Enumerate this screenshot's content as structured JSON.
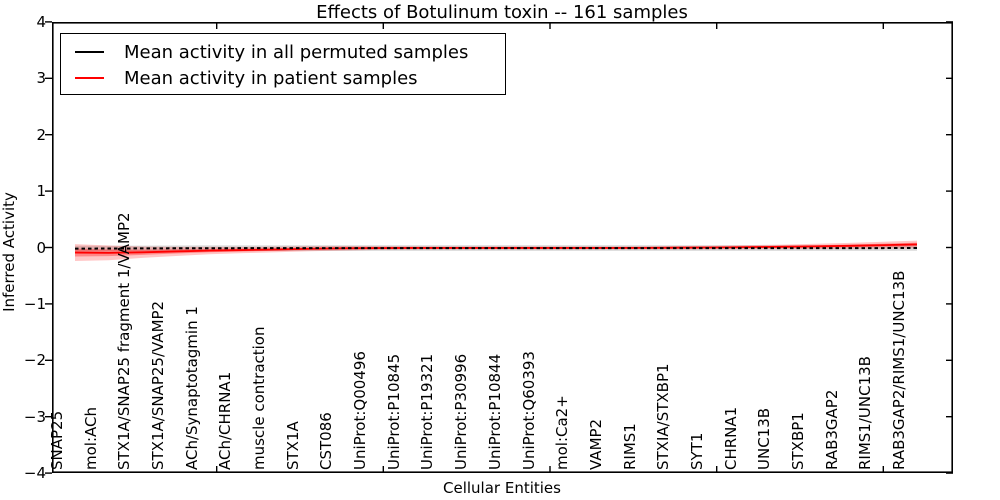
{
  "colors": {
    "background": "#ffffff",
    "frame": "#000000",
    "permuted_line": "#000000",
    "patient_line": "#ff0000",
    "patient_band": "rgba(255,0,0,0.22)",
    "patient_band_inner": "rgba(255,0,0,0.32)",
    "permuted_band": "rgba(0,0,0,0.15)"
  },
  "chart_data": {
    "type": "line",
    "title": "Effects of Botulinum toxin -- 161 samples",
    "xlabel": "Cellular Entities",
    "ylabel": "Inferred Activity",
    "ylim": [
      -4,
      4
    ],
    "ytick_labels": [
      "4",
      "3",
      "2",
      "1",
      "0",
      "−1",
      "−2",
      "−3",
      "−4"
    ],
    "ytick_values": [
      4,
      3,
      2,
      1,
      0,
      -1,
      -2,
      -3,
      -4
    ],
    "grid": false,
    "legend_position": "upper left",
    "categories": [
      "SNAP25",
      "mol:ACh",
      "STX1A/SNAP25 fragment 1/VAMP2",
      "STX1A/SNAP25/VAMP2",
      "ACh/Synaptotagmin 1",
      "ACh/CHRNA1",
      "muscle contraction",
      "STX1A",
      "CST086",
      "UniProt:Q00496",
      "UniProt:P10845",
      "UniProt:P19321",
      "UniProt:P30996",
      "UniProt:P10844",
      "UniProt:Q60393",
      "mol:Ca2+",
      "VAMP2",
      "RIMS1",
      "STXIA/STXBP1",
      "SYT1",
      "CHRNA1",
      "UNC13B",
      "STXBP1",
      "RAB3GAP2",
      "RIMS1/UNC13B",
      "RAB3GAP2/RIMS1/UNC13B"
    ],
    "series": [
      {
        "name": "Mean activity in all permuted samples",
        "color": "#000000",
        "line_style": "dashed",
        "band_half_width": 0.05,
        "values": [
          -0.02,
          -0.018,
          -0.016,
          -0.014,
          -0.013,
          -0.012,
          -0.012,
          -0.011,
          -0.011,
          -0.01,
          -0.01,
          -0.01,
          -0.01,
          -0.01,
          -0.01,
          -0.01,
          -0.01,
          -0.01,
          -0.01,
          -0.01,
          -0.01,
          -0.01,
          -0.01,
          -0.01,
          -0.01,
          -0.008
        ]
      },
      {
        "name": "Mean activity in patient samples",
        "color": "#ff0000",
        "line_style": "solid",
        "values": [
          -0.09,
          -0.095,
          -0.085,
          -0.07,
          -0.055,
          -0.045,
          -0.035,
          -0.022,
          -0.014,
          -0.01,
          -0.008,
          -0.008,
          -0.008,
          -0.008,
          -0.008,
          -0.008,
          -0.008,
          -0.006,
          -0.003,
          0.0,
          0.006,
          0.012,
          0.02,
          0.03,
          0.042,
          0.055
        ],
        "band_upper": [
          0.06,
          0.035,
          0.015,
          0.01,
          0.01,
          0.01,
          0.015,
          0.023,
          0.026,
          0.022,
          0.02,
          0.018,
          0.017,
          0.017,
          0.017,
          0.017,
          0.018,
          0.022,
          0.027,
          0.032,
          0.042,
          0.052,
          0.066,
          0.082,
          0.102,
          0.123
        ],
        "band_lower": [
          -0.24,
          -0.225,
          -0.185,
          -0.15,
          -0.12,
          -0.1,
          -0.085,
          -0.067,
          -0.054,
          -0.042,
          -0.036,
          -0.034,
          -0.033,
          -0.033,
          -0.033,
          -0.033,
          -0.034,
          -0.034,
          -0.033,
          -0.032,
          -0.03,
          -0.028,
          -0.026,
          -0.022,
          -0.018,
          -0.013
        ],
        "inner_band_upper": [
          -0.02,
          -0.036,
          -0.04,
          -0.034,
          -0.026,
          -0.02,
          -0.013,
          -0.002,
          0.004,
          0.004,
          0.005,
          0.004,
          0.003,
          0.003,
          0.003,
          0.003,
          0.004,
          0.007,
          0.011,
          0.014,
          0.022,
          0.03,
          0.041,
          0.053,
          0.069,
          0.086
        ],
        "inner_band_lower": [
          -0.16,
          -0.154,
          -0.13,
          -0.106,
          -0.084,
          -0.07,
          -0.058,
          -0.042,
          -0.032,
          -0.024,
          -0.021,
          -0.02,
          -0.019,
          -0.019,
          -0.019,
          -0.019,
          -0.02,
          -0.019,
          -0.017,
          -0.014,
          -0.01,
          -0.006,
          -0.001,
          0.007,
          0.015,
          0.024
        ]
      }
    ]
  }
}
